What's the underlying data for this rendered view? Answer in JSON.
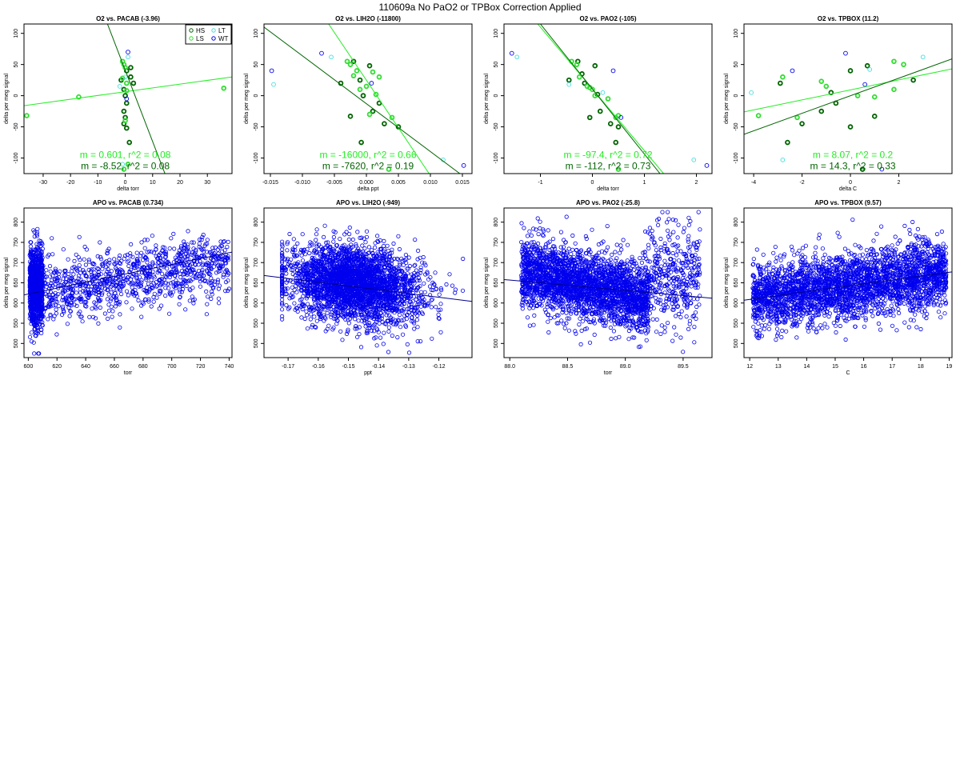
{
  "figure": {
    "title": "110609a   No PaO2 or TPBox Correction Applied"
  },
  "colors": {
    "HS": "#006400",
    "LS": "#33dd33",
    "LT": "#44dddd",
    "WT": "#0000ee",
    "fit_dark": "#006400",
    "fit_light": "#22ee22",
    "fit_apo": "#000088"
  },
  "chart_data": [
    {
      "type": "scatter",
      "title": "O2 vs. PACAB (-3.96)",
      "xlabel": "delta torr",
      "ylabel": "delta per meg signal",
      "xlim": [
        -37,
        39
      ],
      "ylim": [
        -125,
        115
      ],
      "xticks": [
        -30,
        -20,
        -10,
        0,
        10,
        20,
        30
      ],
      "yticks": [
        -100,
        -50,
        0,
        50,
        100
      ],
      "legend": {
        "placement": "top-right",
        "entries": [
          {
            "key": "HS",
            "label": "HS"
          },
          {
            "key": "LT",
            "label": "LT"
          },
          {
            "key": "LS",
            "label": "LS"
          },
          {
            "key": "WT",
            "label": "WT"
          }
        ]
      },
      "series": [
        {
          "key": "HS",
          "x": [
            -1.5,
            -0.5,
            0,
            0.5,
            -0.5,
            0,
            -0.5,
            0.5,
            0.5,
            2,
            3,
            1.5,
            2
          ],
          "y": [
            25,
            10,
            0,
            -12,
            -25,
            -35,
            -45,
            -52,
            40,
            30,
            20,
            -75,
            45
          ]
        },
        {
          "key": "LS",
          "x": [
            -36,
            -17,
            36,
            -1,
            -0.5,
            0,
            0.5,
            -1,
            0,
            1,
            -0.5,
            0.5
          ],
          "y": [
            -32,
            -2,
            12,
            55,
            50,
            45,
            20,
            28,
            -40,
            -110,
            -118,
            8
          ]
        },
        {
          "key": "LT",
          "x": [
            -1,
            1,
            -2,
            0
          ],
          "y": [
            -110,
            62,
            15,
            30
          ]
        },
        {
          "key": "WT",
          "x": [
            1,
            0.5
          ],
          "y": [
            70,
            -5
          ]
        }
      ],
      "fits": [
        {
          "key": "fit_light",
          "x": [
            -37,
            39
          ],
          "y": [
            -16,
            30
          ]
        },
        {
          "key": "fit_dark",
          "x": [
            -6.5,
            14.5
          ],
          "y": [
            115,
            -125
          ]
        }
      ],
      "annotations": [
        {
          "key": "fit_light",
          "text": "m = 0.601, r^2 = 0.08",
          "pos": [
            0,
            -95
          ]
        },
        {
          "key": "fit_dark",
          "text": "m = -8.52, r^2 = 0.08",
          "pos": [
            0,
            -113
          ]
        }
      ]
    },
    {
      "type": "scatter",
      "title": "O2 vs. LIH2O (-11800)",
      "xlabel": "delta ppt",
      "ylabel": "delta per meg signal",
      "xlim": [
        -0.016,
        0.0165
      ],
      "ylim": [
        -125,
        115
      ],
      "xticks": [
        -0.015,
        -0.01,
        -0.005,
        0,
        0.005,
        0.01,
        0.015
      ],
      "xticklabels": [
        "-0.015",
        "-0.010",
        "-0.005",
        "0.000",
        "0.005",
        "0.010",
        "0.015"
      ],
      "yticks": [
        -100,
        -50,
        0,
        50,
        100
      ],
      "series": [
        {
          "key": "HS",
          "x": [
            -0.004,
            -0.002,
            -0.001,
            0.0005,
            0.001,
            -0.0005,
            0.002,
            -0.0025,
            -0.0008,
            0.005,
            0.0028
          ],
          "y": [
            20,
            55,
            25,
            48,
            -25,
            0,
            -12,
            -33,
            -75,
            -50,
            -45
          ]
        },
        {
          "key": "LS",
          "x": [
            -0.003,
            -0.0025,
            -0.002,
            0.002,
            0.001,
            -0.001,
            0,
            0.0005,
            0.0015,
            0.004,
            -0.0015,
            0.0035
          ],
          "y": [
            55,
            50,
            32,
            30,
            38,
            10,
            15,
            -30,
            2,
            -35,
            40,
            -118
          ]
        },
        {
          "key": "LT",
          "x": [
            -0.0145,
            -0.0055,
            0.012
          ],
          "y": [
            18,
            62,
            -103
          ]
        },
        {
          "key": "WT",
          "x": [
            -0.0148,
            -0.007,
            0.0152,
            0.0008
          ],
          "y": [
            40,
            68,
            -112,
            20
          ]
        }
      ],
      "fits": [
        {
          "key": "fit_light",
          "x": [
            -0.0059,
            0.0098
          ],
          "y": [
            115,
            -125
          ]
        },
        {
          "key": "fit_dark",
          "x": [
            -0.016,
            0.0146
          ],
          "y": [
            110,
            -125
          ]
        }
      ],
      "annotations": [
        {
          "key": "fit_light",
          "text": "m = -16000, r^2 = 0.66",
          "pos": [
            0.00025,
            -95
          ]
        },
        {
          "key": "fit_dark",
          "text": "m = -7620, r^2 = 0.19",
          "pos": [
            0.00025,
            -113
          ]
        }
      ]
    },
    {
      "type": "scatter",
      "title": "O2 vs. PAO2 (-105)",
      "xlabel": "delta torr",
      "ylabel": "delta per meg signal",
      "xlim": [
        -1.7,
        2.3
      ],
      "ylim": [
        -125,
        115
      ],
      "xticks": [
        -1,
        0,
        1,
        2
      ],
      "yticks": [
        -100,
        -50,
        0,
        50,
        100
      ],
      "series": [
        {
          "key": "HS",
          "x": [
            -0.45,
            -0.28,
            -0.15,
            0.05,
            -0.05,
            0.15,
            0.35,
            0.5,
            0.45,
            -0.2,
            0.1
          ],
          "y": [
            25,
            55,
            20,
            48,
            -35,
            -25,
            -45,
            -50,
            -75,
            35,
            2
          ]
        },
        {
          "key": "LS",
          "x": [
            -0.4,
            -0.3,
            -0.25,
            -0.1,
            0,
            0.05,
            0.3,
            0.5,
            0.45,
            0.5,
            -0.05
          ],
          "y": [
            55,
            50,
            30,
            15,
            10,
            0,
            -5,
            -32,
            -35,
            -118,
            13
          ]
        },
        {
          "key": "LT",
          "x": [
            -1.45,
            -0.45,
            1.95,
            0.2
          ],
          "y": [
            62,
            18,
            -103,
            5
          ]
        },
        {
          "key": "WT",
          "x": [
            -1.55,
            2.2,
            0.4,
            0.55
          ],
          "y": [
            68,
            -112,
            40,
            -35
          ]
        }
      ],
      "fits": [
        {
          "key": "fit_light",
          "x": [
            -1.05,
            1.37
          ],
          "y": [
            115,
            -125
          ]
        },
        {
          "key": "fit_dark",
          "x": [
            -1.0,
            1.3
          ],
          "y": [
            115,
            -125
          ]
        }
      ],
      "annotations": [
        {
          "key": "fit_light",
          "text": "m = -97.4, r^2 = 0.72",
          "pos": [
            0.3,
            -95
          ]
        },
        {
          "key": "fit_dark",
          "text": "m = -112, r^2 = 0.73",
          "pos": [
            0.3,
            -113
          ]
        }
      ]
    },
    {
      "type": "scatter",
      "title": "O2 vs. TPBOX (11.2)",
      "xlabel": "delta C",
      "ylabel": "delta per meg signal",
      "xlim": [
        -4.4,
        4.2
      ],
      "ylim": [
        -125,
        115
      ],
      "xticks": [
        -4,
        -2,
        0,
        2
      ],
      "yticks": [
        -100,
        -50,
        0,
        50,
        100
      ],
      "series": [
        {
          "key": "HS",
          "x": [
            -2.6,
            -2.9,
            -2.0,
            -1.2,
            -0.6,
            0,
            0,
            0.7,
            1.0,
            2.6,
            -0.8,
            0.5
          ],
          "y": [
            -75,
            20,
            -45,
            -25,
            -12,
            40,
            -50,
            48,
            -33,
            25,
            5,
            -118
          ]
        },
        {
          "key": "LS",
          "x": [
            -3.8,
            -2.8,
            -2.2,
            -1.2,
            -1.0,
            0.3,
            1.0,
            1.8,
            2.2,
            1.8
          ],
          "y": [
            -32,
            30,
            -35,
            23,
            15,
            0,
            -2,
            55,
            50,
            10
          ]
        },
        {
          "key": "LT",
          "x": [
            -4.1,
            -2.8,
            3.0,
            0.8
          ],
          "y": [
            5,
            -103,
            62,
            42
          ]
        },
        {
          "key": "WT",
          "x": [
            -2.4,
            -0.2,
            0.6,
            1.3
          ],
          "y": [
            40,
            68,
            18,
            -118
          ]
        }
      ],
      "fits": [
        {
          "key": "fit_light",
          "x": [
            -4.4,
            4.2
          ],
          "y": [
            -26,
            43
          ]
        },
        {
          "key": "fit_dark",
          "x": [
            -4.4,
            4.2
          ],
          "y": [
            -62,
            59
          ]
        }
      ],
      "annotations": [
        {
          "key": "fit_light",
          "text": "m = 8.07, r^2 = 0.2",
          "pos": [
            0.1,
            -95
          ]
        },
        {
          "key": "fit_dark",
          "text": "m = 14.3, r^2 = 0.33",
          "pos": [
            0.1,
            -113
          ]
        }
      ]
    },
    {
      "type": "scatter",
      "title": "APO vs. PACAB (0.734)",
      "xlabel": "torr",
      "ylabel": "delta per meg signal",
      "xlim": [
        597,
        742
      ],
      "ylim": [
        465,
        835
      ],
      "xticks": [
        600,
        620,
        640,
        660,
        680,
        700,
        720,
        740
      ],
      "yticks": [
        500,
        550,
        600,
        650,
        700,
        750,
        800
      ],
      "point_color_key": "WT",
      "fits": [
        {
          "key": "fit_apo",
          "x": [
            597,
            742
          ],
          "y": [
            620,
            726
          ]
        }
      ]
    },
    {
      "type": "scatter",
      "title": "APO vs. LIH2O (-949)",
      "xlabel": "ppt",
      "ylabel": "delta per meg signal",
      "xlim": [
        -0.178,
        -0.109
      ],
      "ylim": [
        465,
        835
      ],
      "xticks": [
        -0.17,
        -0.16,
        -0.15,
        -0.14,
        -0.13,
        -0.12
      ],
      "xticklabels": [
        "-0.17",
        "-0.16",
        "-0.15",
        "-0.14",
        "-0.13",
        "-0.12"
      ],
      "yticks": [
        500,
        550,
        600,
        650,
        700,
        750,
        800
      ],
      "point_color_key": "WT",
      "fits": [
        {
          "key": "fit_apo",
          "x": [
            -0.178,
            -0.109
          ],
          "y": [
            668,
            604
          ]
        }
      ]
    },
    {
      "type": "scatter",
      "title": "APO vs. PAO2 (-25.8)",
      "xlabel": "torr",
      "ylabel": "delta per meg signal",
      "xlim": [
        87.95,
        89.75
      ],
      "ylim": [
        465,
        835
      ],
      "xticks": [
        88.0,
        88.5,
        89.0,
        89.5
      ],
      "xticklabels": [
        "88.0",
        "88.5",
        "89.0",
        "89.5"
      ],
      "yticks": [
        500,
        550,
        600,
        650,
        700,
        750,
        800
      ],
      "point_color_key": "WT",
      "fits": [
        {
          "key": "fit_apo",
          "x": [
            87.95,
            89.75
          ],
          "y": [
            658,
            612
          ]
        }
      ]
    },
    {
      "type": "scatter",
      "title": "APO vs. TPBOX (9.57)",
      "xlabel": "C",
      "ylabel": "delta per meg signal",
      "xlim": [
        11.8,
        19.1
      ],
      "ylim": [
        465,
        835
      ],
      "xticks": [
        12,
        13,
        14,
        15,
        16,
        17,
        18,
        19
      ],
      "yticks": [
        500,
        550,
        600,
        650,
        700,
        750,
        800
      ],
      "point_color_key": "WT",
      "fits": [
        {
          "key": "fit_apo",
          "x": [
            11.8,
            19.1
          ],
          "y": [
            607,
            677
          ]
        }
      ]
    }
  ]
}
